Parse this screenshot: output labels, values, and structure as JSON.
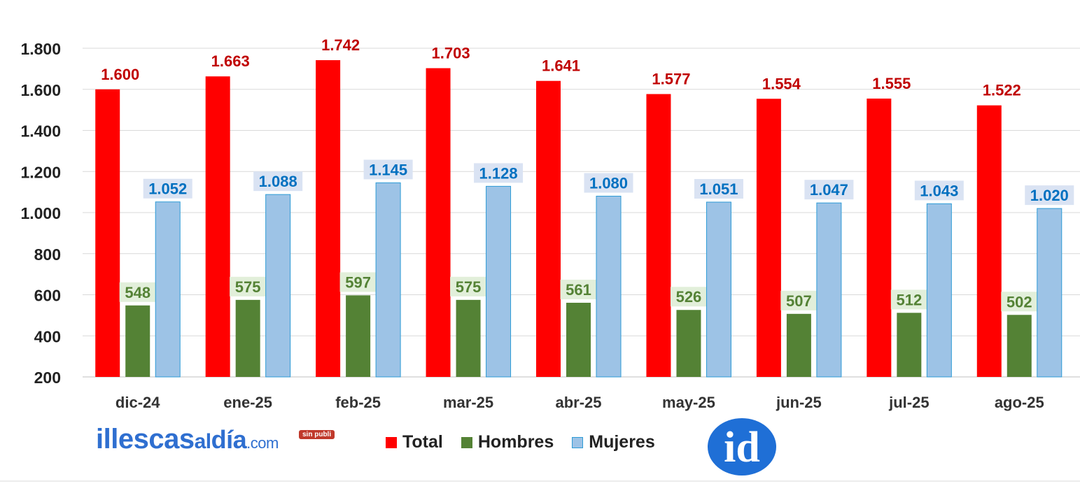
{
  "chart_data": {
    "type": "bar",
    "categories": [
      "dic-24",
      "ene-25",
      "feb-25",
      "mar-25",
      "abr-25",
      "may-25",
      "jun-25",
      "jul-25",
      "ago-25"
    ],
    "series": [
      {
        "name": "Total",
        "color": "#ff0000",
        "label_color": "#c00000",
        "values": [
          1600,
          1663,
          1742,
          1703,
          1641,
          1577,
          1554,
          1555,
          1522
        ],
        "labels": [
          "1.600",
          "1.663",
          "1.742",
          "1.703",
          "1.641",
          "1.577",
          "1.554",
          "1.555",
          "1.522"
        ]
      },
      {
        "name": "Hombres",
        "color": "#548235",
        "label_color": "#548235",
        "label_bg": "#e2efda",
        "values": [
          548,
          575,
          597,
          575,
          561,
          526,
          507,
          512,
          502
        ],
        "labels": [
          "548",
          "575",
          "597",
          "575",
          "561",
          "526",
          "507",
          "512",
          "502"
        ]
      },
      {
        "name": "Mujeres",
        "color": "#9dc3e6",
        "label_color": "#0070c0",
        "label_bg": "#dae3f3",
        "values": [
          1052,
          1088,
          1145,
          1128,
          1080,
          1051,
          1047,
          1043,
          1020
        ],
        "labels": [
          "1.052",
          "1.088",
          "1.145",
          "1.128",
          "1.080",
          "1.051",
          "1.047",
          "1.043",
          "1.020"
        ]
      }
    ],
    "ylim": [
      200,
      1800
    ],
    "yticks": [
      200,
      400,
      600,
      800,
      1000,
      1200,
      1400,
      1600,
      1800
    ],
    "ytick_labels": [
      "200",
      "400",
      "600",
      "800",
      "1.000",
      "1.200",
      "1.400",
      "1.600",
      "1.800"
    ],
    "grid": true,
    "legend_position": "bottom-center"
  },
  "branding": {
    "logo_parts": [
      "illescas",
      "al",
      "día",
      ".com"
    ],
    "sin_publi": "sin publi",
    "id_logo_text": "id"
  }
}
